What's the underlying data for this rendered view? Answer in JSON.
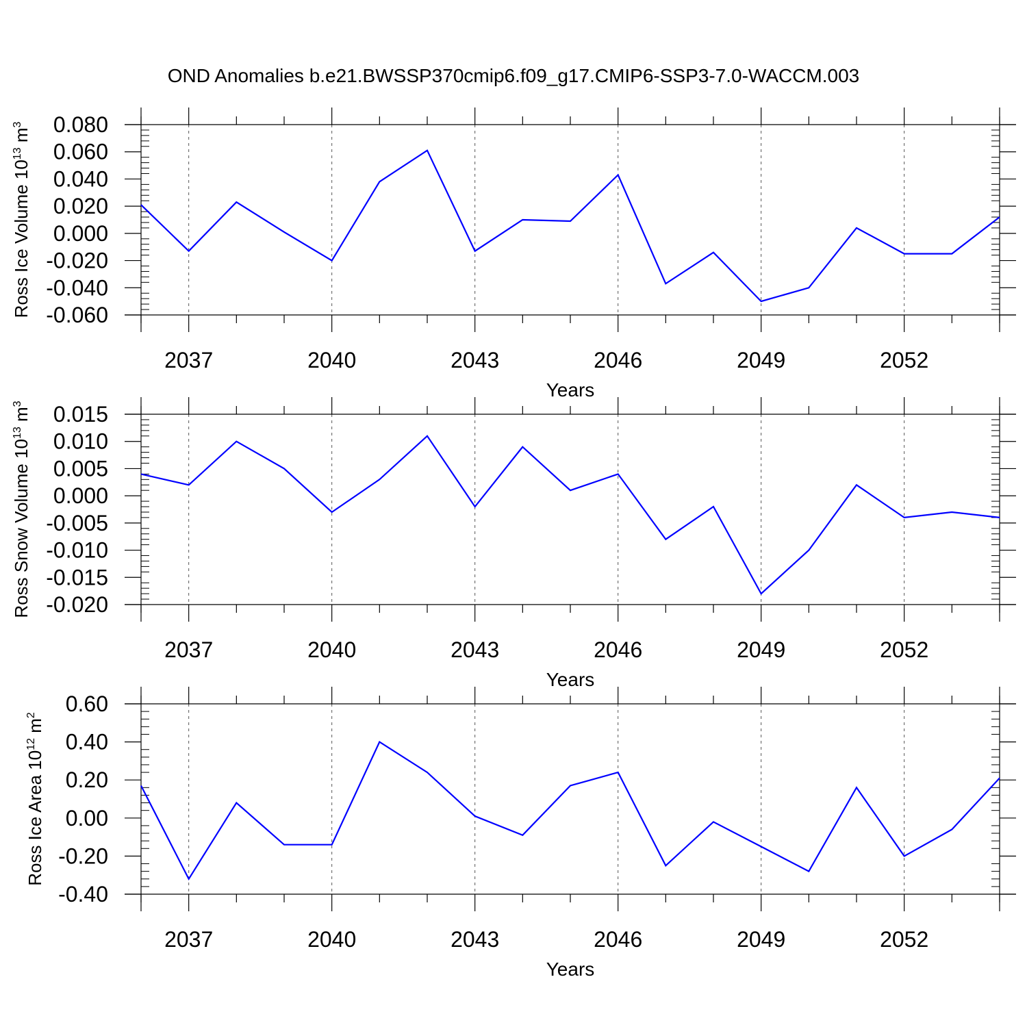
{
  "title": "OND Anomalies b.e21.BWSSP370cmip6.f09_g17.CMIP6-SSP3-7.0-WACCM.003",
  "line_color": "#0000ff",
  "chart_data": [
    {
      "type": "line",
      "title": "",
      "xlabel": "Years",
      "ylabel": {
        "prefix": "Ross Ice Volume 10",
        "exp": "13",
        "unit": " m",
        "unit_exp": "3"
      },
      "x": [
        2036,
        2037,
        2038,
        2039,
        2040,
        2041,
        2042,
        2043,
        2044,
        2045,
        2046,
        2047,
        2048,
        2049,
        2050,
        2051,
        2052,
        2053,
        2054
      ],
      "xlim": [
        2036,
        2054
      ],
      "xticks": [
        2037,
        2040,
        2043,
        2046,
        2049,
        2052
      ],
      "xtick_labels": [
        "2037",
        "2040",
        "2043",
        "2046",
        "2049",
        "2052"
      ],
      "ylim": [
        -0.06,
        0.08
      ],
      "yticks": [
        0.08,
        0.06,
        0.04,
        0.02,
        0.0,
        -0.02,
        -0.04,
        -0.06
      ],
      "ytick_labels": [
        "0.080",
        "0.060",
        "0.040",
        "0.020",
        "0.000",
        "-0.020",
        "-0.040",
        "-0.060"
      ],
      "series": [
        {
          "values": [
            0.021,
            -0.013,
            0.023,
            0.001,
            -0.02,
            0.038,
            0.061,
            -0.013,
            0.01,
            0.009,
            0.043,
            -0.037,
            -0.014,
            -0.05,
            -0.04,
            0.004,
            -0.015,
            -0.015,
            0.012
          ]
        }
      ]
    },
    {
      "type": "line",
      "title": "",
      "xlabel": "Years",
      "ylabel": {
        "prefix": "Ross Snow Volume 10",
        "exp": "13",
        "unit": " m",
        "unit_exp": "3"
      },
      "x": [
        2036,
        2037,
        2038,
        2039,
        2040,
        2041,
        2042,
        2043,
        2044,
        2045,
        2046,
        2047,
        2048,
        2049,
        2050,
        2051,
        2052,
        2053,
        2054
      ],
      "xlim": [
        2036,
        2054
      ],
      "xticks": [
        2037,
        2040,
        2043,
        2046,
        2049,
        2052
      ],
      "xtick_labels": [
        "2037",
        "2040",
        "2043",
        "2046",
        "2049",
        "2052"
      ],
      "ylim": [
        -0.02,
        0.015
      ],
      "yticks": [
        0.015,
        0.01,
        0.005,
        0.0,
        -0.005,
        -0.01,
        -0.015,
        -0.02
      ],
      "ytick_labels": [
        "0.015",
        "0.010",
        "0.005",
        "0.000",
        "-0.005",
        "-0.010",
        "-0.015",
        "-0.020"
      ],
      "series": [
        {
          "values": [
            0.004,
            0.002,
            0.01,
            0.005,
            -0.003,
            0.003,
            0.011,
            -0.002,
            0.009,
            0.001,
            0.004,
            -0.008,
            -0.002,
            -0.018,
            -0.01,
            0.002,
            -0.004,
            -0.003,
            -0.004
          ]
        }
      ]
    },
    {
      "type": "line",
      "title": "",
      "xlabel": "Years",
      "ylabel": {
        "prefix": "Ross Ice Area 10",
        "exp": "12",
        "unit": " m",
        "unit_exp": "2"
      },
      "x": [
        2036,
        2037,
        2038,
        2039,
        2040,
        2041,
        2042,
        2043,
        2044,
        2045,
        2046,
        2047,
        2048,
        2049,
        2050,
        2051,
        2052,
        2053,
        2054
      ],
      "xlim": [
        2036,
        2054
      ],
      "xticks": [
        2037,
        2040,
        2043,
        2046,
        2049,
        2052
      ],
      "xtick_labels": [
        "2037",
        "2040",
        "2043",
        "2046",
        "2049",
        "2052"
      ],
      "ylim": [
        -0.4,
        0.6
      ],
      "yticks": [
        0.6,
        0.4,
        0.2,
        0.0,
        -0.2,
        -0.4
      ],
      "ytick_labels": [
        "0.60",
        "0.40",
        "0.20",
        "0.00",
        "-0.20",
        "-0.40"
      ],
      "series": [
        {
          "values": [
            0.17,
            -0.32,
            0.08,
            -0.14,
            -0.14,
            0.4,
            0.24,
            0.01,
            -0.09,
            0.17,
            0.24,
            -0.25,
            -0.02,
            -0.15,
            -0.28,
            0.16,
            -0.2,
            -0.06,
            0.21
          ]
        }
      ]
    }
  ]
}
